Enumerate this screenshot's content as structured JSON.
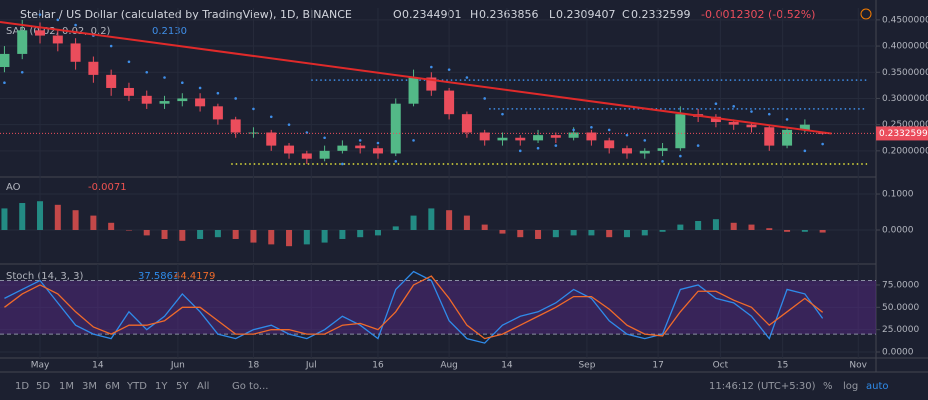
{
  "header": {
    "symbol": "Stellar / US Dollar (calculated by TradingView), 1D, BINANCE",
    "ohlc": [
      "O",
      "0.2344901",
      "H",
      "0.2363856",
      "L",
      "0.2309407",
      "C",
      "0.2332599"
    ],
    "change": "-0.0012302 (-0.52%)"
  },
  "chart_data": [
    {
      "type": "candlestick",
      "legend": {
        "name": "SAR (0.02, 0.02, 0.2)",
        "value": "0.2130"
      },
      "x": [
        -8,
        -4,
        0,
        4,
        8,
        12,
        16,
        20,
        24,
        28,
        32,
        36,
        40,
        44,
        48,
        52,
        56,
        60,
        64,
        68,
        72,
        76,
        80,
        84,
        88,
        92,
        96,
        100,
        104,
        108,
        112,
        116,
        120,
        124,
        128,
        132,
        136,
        140,
        144,
        148,
        152,
        156,
        160,
        164,
        168,
        172,
        176
      ],
      "open": [
        0.36,
        0.385,
        0.43,
        0.42,
        0.405,
        0.37,
        0.345,
        0.32,
        0.305,
        0.29,
        0.295,
        0.3,
        0.285,
        0.26,
        0.235,
        0.235,
        0.21,
        0.195,
        0.185,
        0.2,
        0.21,
        0.205,
        0.195,
        0.29,
        0.34,
        0.315,
        0.27,
        0.235,
        0.22,
        0.225,
        0.22,
        0.23,
        0.225,
        0.235,
        0.22,
        0.205,
        0.195,
        0.2,
        0.205,
        0.27,
        0.265,
        0.255,
        0.25,
        0.245,
        0.21,
        0.24,
        0.2344901
      ],
      "high": [
        0.4,
        0.45,
        0.445,
        0.43,
        0.415,
        0.38,
        0.355,
        0.33,
        0.315,
        0.305,
        0.31,
        0.31,
        0.29,
        0.265,
        0.245,
        0.24,
        0.215,
        0.2,
        0.21,
        0.22,
        0.215,
        0.21,
        0.3,
        0.355,
        0.35,
        0.32,
        0.275,
        0.24,
        0.235,
        0.23,
        0.24,
        0.235,
        0.245,
        0.24,
        0.225,
        0.21,
        0.205,
        0.215,
        0.285,
        0.28,
        0.27,
        0.26,
        0.255,
        0.25,
        0.245,
        0.26,
        0.2363856
      ],
      "low": [
        0.35,
        0.375,
        0.405,
        0.39,
        0.355,
        0.33,
        0.305,
        0.295,
        0.28,
        0.28,
        0.285,
        0.275,
        0.25,
        0.225,
        0.225,
        0.2,
        0.185,
        0.175,
        0.18,
        0.195,
        0.195,
        0.185,
        0.19,
        0.285,
        0.305,
        0.26,
        0.225,
        0.21,
        0.21,
        0.21,
        0.215,
        0.215,
        0.22,
        0.21,
        0.195,
        0.185,
        0.185,
        0.19,
        0.2,
        0.255,
        0.245,
        0.24,
        0.235,
        0.2,
        0.205,
        0.235,
        0.2309407
      ],
      "close": [
        0.385,
        0.43,
        0.42,
        0.405,
        0.37,
        0.345,
        0.32,
        0.305,
        0.29,
        0.295,
        0.3,
        0.285,
        0.26,
        0.235,
        0.235,
        0.21,
        0.195,
        0.185,
        0.2,
        0.21,
        0.205,
        0.195,
        0.29,
        0.34,
        0.315,
        0.27,
        0.235,
        0.22,
        0.225,
        0.22,
        0.23,
        0.225,
        0.235,
        0.22,
        0.205,
        0.195,
        0.2,
        0.205,
        0.27,
        0.265,
        0.255,
        0.25,
        0.245,
        0.21,
        0.24,
        0.25,
        0.2332599
      ],
      "sar": [
        0.33,
        0.35,
        0.46,
        0.45,
        0.44,
        0.42,
        0.4,
        0.37,
        0.35,
        0.34,
        0.33,
        0.32,
        0.31,
        0.3,
        0.28,
        0.265,
        0.25,
        0.235,
        0.225,
        0.175,
        0.22,
        0.215,
        0.18,
        0.22,
        0.36,
        0.355,
        0.34,
        0.3,
        0.27,
        0.2,
        0.205,
        0.21,
        0.24,
        0.245,
        0.24,
        0.23,
        0.22,
        0.18,
        0.19,
        0.21,
        0.29,
        0.285,
        0.275,
        0.27,
        0.26,
        0.2,
        0.213
      ],
      "up_color": "#53b987",
      "down_color": "#eb4d5c",
      "sar_color": "#3f8ee8",
      "trend_line": {
        "x": [
          -9,
          178
        ],
        "y": [
          0.446,
          0.233
        ],
        "color": "#e02a2a"
      },
      "levels": [
        {
          "y": 0.335,
          "x": [
            61,
            186
          ],
          "color": "#3f8ee8"
        },
        {
          "y": 0.28,
          "x": [
            101,
            186
          ],
          "color": "#3f8ee8"
        },
        {
          "y": 0.175,
          "x": [
            43,
            186
          ],
          "color": "#e6e63a"
        }
      ],
      "last_price": 0.2332599,
      "xlim": [
        -9,
        188
      ],
      "ylim": [
        0.152,
        0.465
      ],
      "yticks": [
        {
          "value": 0.2,
          "label": "0.2000000"
        },
        {
          "value": 0.25,
          "label": "0.2500000"
        },
        {
          "value": 0.3,
          "label": "0.3000000"
        },
        {
          "value": 0.35,
          "label": "0.3500000"
        },
        {
          "value": 0.4,
          "label": "0.4000000"
        },
        {
          "value": 0.45,
          "label": "0.4500000"
        }
      ]
    },
    {
      "type": "bar",
      "legend": {
        "name": "AO",
        "value": "-0.0071"
      },
      "x": [
        -8,
        -4,
        0,
        4,
        8,
        12,
        16,
        20,
        24,
        28,
        32,
        36,
        40,
        44,
        48,
        52,
        56,
        60,
        64,
        68,
        72,
        76,
        80,
        84,
        88,
        92,
        96,
        100,
        104,
        108,
        112,
        116,
        120,
        124,
        128,
        132,
        136,
        140,
        144,
        148,
        152,
        156,
        160,
        164,
        168,
        172,
        176
      ],
      "values": [
        0.06,
        0.075,
        0.08,
        0.07,
        0.055,
        0.04,
        0.02,
        0.0,
        -0.015,
        -0.025,
        -0.03,
        -0.025,
        -0.02,
        -0.025,
        -0.035,
        -0.04,
        -0.045,
        -0.04,
        -0.035,
        -0.025,
        -0.02,
        -0.015,
        0.01,
        0.04,
        0.06,
        0.055,
        0.04,
        0.015,
        -0.01,
        -0.02,
        -0.025,
        -0.02,
        -0.015,
        -0.015,
        -0.02,
        -0.02,
        -0.015,
        -0.005,
        0.015,
        0.025,
        0.03,
        0.02,
        0.015,
        0.005,
        -0.005,
        -0.005,
        -0.0071
      ],
      "up_color": "#26a69a",
      "down_color": "#ef5350",
      "xlim": [
        -9,
        188
      ],
      "ylim": [
        -0.089,
        0.139
      ],
      "yticks": [
        {
          "value": 0,
          "label": "0.0000"
        },
        {
          "value": 0.1,
          "label": "0.1000"
        }
      ]
    },
    {
      "type": "line",
      "legend": {
        "name": "Stoch (14, 3, 3)",
        "values": [
          "37.5863",
          "44.4179"
        ]
      },
      "x": [
        -8,
        -4,
        0,
        4,
        8,
        12,
        16,
        20,
        24,
        28,
        32,
        36,
        40,
        44,
        48,
        52,
        56,
        60,
        64,
        68,
        72,
        76,
        80,
        84,
        88,
        92,
        96,
        100,
        104,
        108,
        112,
        116,
        120,
        124,
        128,
        132,
        136,
        140,
        144,
        148,
        152,
        156,
        160,
        164,
        168,
        172,
        176
      ],
      "series": [
        {
          "color": "#2f8bea",
          "values": [
            60,
            70,
            80,
            55,
            30,
            20,
            15,
            45,
            25,
            40,
            65,
            45,
            20,
            15,
            25,
            30,
            20,
            15,
            25,
            40,
            30,
            15,
            70,
            90,
            80,
            35,
            15,
            10,
            30,
            40,
            45,
            55,
            70,
            60,
            35,
            20,
            15,
            20,
            70,
            75,
            60,
            55,
            40,
            15,
            70,
            65,
            37.5863
          ]
        },
        {
          "color": "#f06a2a",
          "values": [
            50,
            65,
            75,
            65,
            45,
            28,
            20,
            30,
            30,
            35,
            50,
            50,
            35,
            20,
            20,
            25,
            25,
            20,
            20,
            30,
            32,
            25,
            45,
            75,
            85,
            60,
            30,
            15,
            20,
            30,
            40,
            50,
            62,
            62,
            48,
            30,
            20,
            18,
            45,
            68,
            68,
            58,
            50,
            30,
            45,
            60,
            44.4179
          ]
        }
      ],
      "band": [
        20,
        80
      ],
      "band_color": "#5b2a8c",
      "xlim": [
        -9,
        188
      ],
      "ylim": [
        -6.7,
        94
      ],
      "yticks": [
        {
          "value": 0,
          "label": "0.0000"
        },
        {
          "value": 25,
          "label": "25.0000"
        },
        {
          "value": 50,
          "label": "50.0000"
        },
        {
          "value": 75,
          "label": "75.0000"
        }
      ],
      "xticks": [
        {
          "value": 0,
          "label": "May"
        },
        {
          "value": 13,
          "label": "14"
        },
        {
          "value": 31,
          "label": "Jun"
        },
        {
          "value": 48,
          "label": "18"
        },
        {
          "value": 61,
          "label": "Jul"
        },
        {
          "value": 76,
          "label": "16"
        },
        {
          "value": 92,
          "label": "Aug"
        },
        {
          "value": 105,
          "label": "14"
        },
        {
          "value": 123,
          "label": "Sep"
        },
        {
          "value": 139,
          "label": "17"
        },
        {
          "value": 153,
          "label": "Oct"
        },
        {
          "value": 167,
          "label": "15"
        },
        {
          "value": 184,
          "label": "Nov"
        }
      ]
    }
  ],
  "toolbar": {
    "ranges": [
      "1D",
      "5D",
      "1M",
      "3M",
      "6M",
      "YTD",
      "1Y",
      "5Y",
      "All"
    ],
    "goto": "Go to...",
    "time": "11:46:12 (UTC+5:30)",
    "options": [
      "%",
      "log",
      "auto"
    ]
  }
}
